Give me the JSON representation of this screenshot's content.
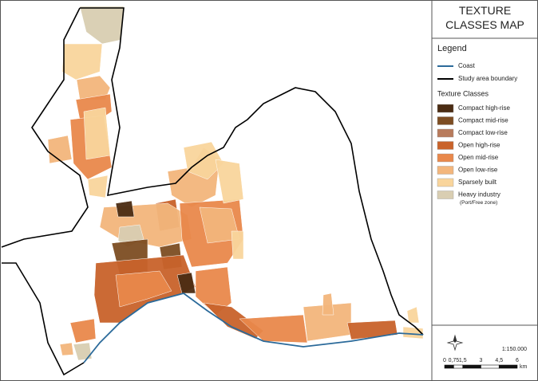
{
  "title": "TEXTURE CLASSES MAP",
  "legend": {
    "heading": "Legend",
    "lines": [
      {
        "label": "Coast",
        "color": "#2b6a9a"
      },
      {
        "label": "Study area boundary",
        "color": "#000000"
      }
    ],
    "classes_heading": "Texture Classes",
    "classes": [
      {
        "label": "Compact high-rise",
        "color": "#4b2c13"
      },
      {
        "label": "Compact mid-rise",
        "color": "#7d4d22"
      },
      {
        "label": "Compact low-rise",
        "color": "#b87b5c"
      },
      {
        "label": "Open high-rise",
        "color": "#c9632b"
      },
      {
        "label": "Open mid-rise",
        "color": "#e9884b"
      },
      {
        "label": "Open low-rise",
        "color": "#f3b67c"
      },
      {
        "label": "Sparsely built",
        "color": "#f9d59c"
      },
      {
        "label": "Heavy industry",
        "note": "(Port/Free zone)",
        "color": "#d9ceb2"
      }
    ]
  },
  "scale_ratio": "1:150.000",
  "scale_bar": {
    "ticks": [
      "0",
      "0,75",
      "1,5",
      "3",
      "4,5",
      "6"
    ],
    "unit": "km"
  }
}
